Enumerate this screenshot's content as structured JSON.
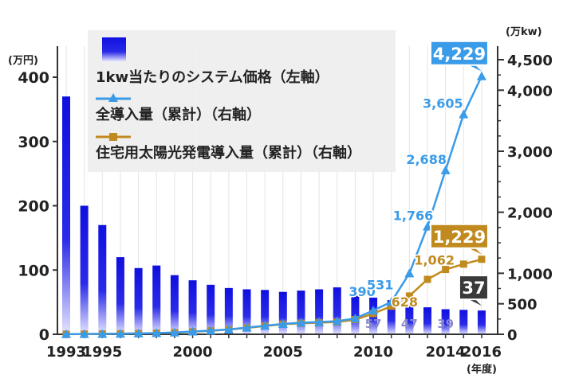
{
  "chart_data": {
    "type": "bar",
    "categories": [
      "1993",
      "1994",
      "1995",
      "1996",
      "1997",
      "1998",
      "1999",
      "2000",
      "2001",
      "2002",
      "2003",
      "2004",
      "2005",
      "2006",
      "2007",
      "2008",
      "2009",
      "2010",
      "2011",
      "2012",
      "2013",
      "2014",
      "2015",
      "2016"
    ],
    "x_tick_labels": [
      "1993",
      "1995",
      "2000",
      "2005",
      "2010",
      "2014",
      "2016"
    ],
    "x_unit": "(年度)",
    "left_axis": {
      "unit": "(万円)",
      "ylim": [
        0,
        400
      ],
      "ticks": [
        "0",
        "100",
        "200",
        "300",
        "400"
      ]
    },
    "right_axis": {
      "unit": "(万kw)",
      "ylim": [
        0,
        4500
      ],
      "ticks": [
        "0",
        "500",
        "1,000",
        "2,000",
        "3,000",
        "4,000",
        "4,500"
      ]
    },
    "legend_position": "top-left",
    "series": [
      {
        "name": "1kw当たりのシステム価格（左軸）",
        "axis": "left",
        "render": "bar",
        "color": "#1010e0",
        "values": [
          370,
          200,
          170,
          120,
          103,
          107,
          92,
          84,
          77,
          72,
          70,
          69,
          66,
          68,
          70,
          73,
          60,
          57,
          53,
          47,
          42,
          39,
          38,
          37
        ]
      },
      {
        "name": "全導入量（累計）（右軸）",
        "axis": "right",
        "render": "line",
        "marker": "triangle",
        "color": "#3a9be8",
        "values": [
          3,
          5,
          7,
          10,
          15,
          20,
          30,
          45,
          60,
          80,
          110,
          140,
          170,
          190,
          200,
          215,
          260,
          390,
          531,
          1000,
          1766,
          2688,
          3605,
          4229
        ]
      },
      {
        "name": "住宅用太陽光発電導入量（累計）（右軸）",
        "axis": "right",
        "render": "line",
        "marker": "square",
        "color": "#c08a1e",
        "values": [
          2,
          4,
          6,
          9,
          14,
          19,
          28,
          42,
          57,
          78,
          105,
          135,
          165,
          180,
          190,
          200,
          240,
          340,
          460,
          628,
          900,
          1062,
          1150,
          1229
        ]
      }
    ],
    "data_labels": [
      {
        "series": 1,
        "index": 17,
        "text": "390"
      },
      {
        "series": 1,
        "index": 18,
        "text": "531"
      },
      {
        "series": 1,
        "index": 20,
        "text": "1,766"
      },
      {
        "series": 1,
        "index": 21,
        "text": "2,688"
      },
      {
        "series": 1,
        "index": 22,
        "text": "3,605"
      },
      {
        "series": 2,
        "index": 19,
        "text": "628"
      },
      {
        "series": 2,
        "index": 21,
        "text": "1,062"
      },
      {
        "series": 0,
        "index": 17,
        "text": "57"
      },
      {
        "series": 0,
        "index": 19,
        "text": "47"
      },
      {
        "series": 0,
        "index": 21,
        "text": "39"
      }
    ],
    "callouts": [
      {
        "series": 1,
        "index": 23,
        "text": "4,229",
        "bg": "#3a9be8"
      },
      {
        "series": 2,
        "index": 23,
        "text": "1,229",
        "bg": "#c08a1e"
      },
      {
        "series": 0,
        "index": 23,
        "text": "37",
        "bg": "#3a3a3a"
      }
    ]
  }
}
